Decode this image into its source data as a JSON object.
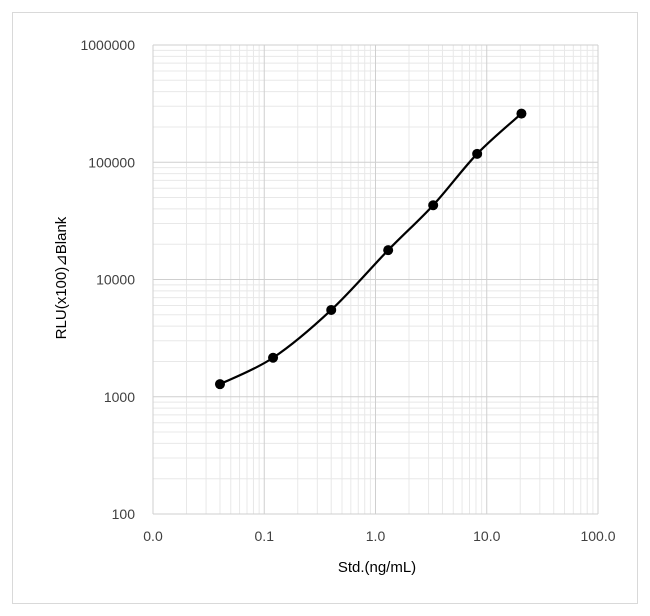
{
  "chart_data": {
    "type": "line",
    "xlabel": "Std.(ng/mL)",
    "ylabel": "RLU(x100)⊿Blank",
    "x_scale": "log",
    "y_scale": "log",
    "xlim": [
      0.01,
      100
    ],
    "ylim": [
      100,
      1000000
    ],
    "x_tick_values": [
      0.01,
      0.1,
      1,
      10,
      100
    ],
    "x_tick_labels": [
      "0.0",
      "0.1",
      "1.0",
      "10.0",
      "100.0"
    ],
    "y_tick_values": [
      100,
      1000,
      10000,
      100000,
      1000000
    ],
    "y_tick_labels": [
      "100",
      "1000",
      "10000",
      "100000",
      "1000000"
    ],
    "grid": true,
    "legend": "none",
    "line_color": "#000000",
    "series": [
      {
        "x": [
          0.04,
          0.12,
          0.4,
          1.3,
          3.3,
          8.2,
          20.5
        ],
        "y": [
          1280,
          2150,
          5500,
          17800,
          43000,
          118000,
          260000
        ]
      }
    ]
  }
}
